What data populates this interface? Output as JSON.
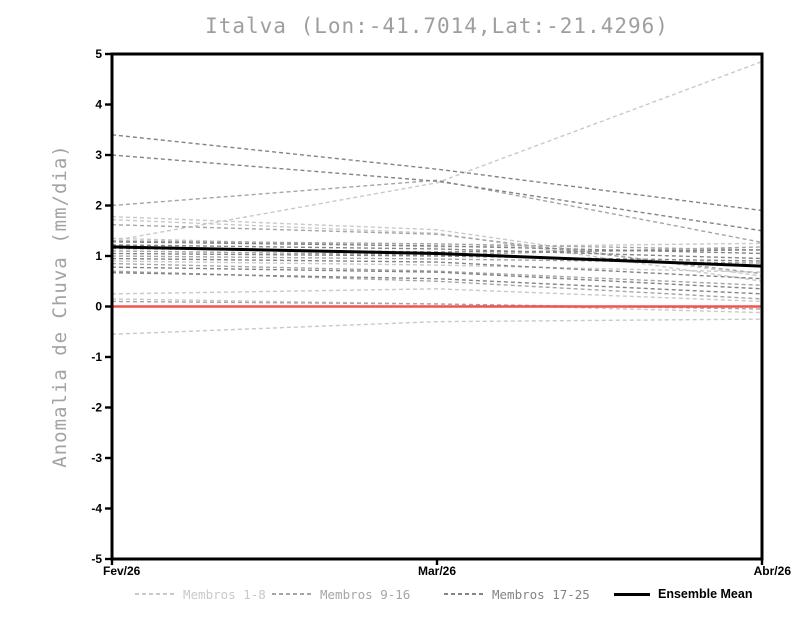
{
  "title": "Italva (Lon:-41.7014,Lat:-21.4296)",
  "chart_data": {
    "type": "line",
    "title": "Italva (Lon:-41.7014,Lat:-21.4296)",
    "xlabel": "",
    "ylabel": "Anomalia de Chuva (mm/dia)",
    "ylim": [
      -5,
      5
    ],
    "y_ticks": [
      5,
      4,
      3,
      2,
      1,
      0,
      -1,
      -2,
      -3,
      -4,
      -5
    ],
    "x_tick_labels": [
      "Fev/26",
      "Mar/26",
      "Abr/26"
    ],
    "grid": false,
    "legend_position": "bottom",
    "frame_color": "#000000",
    "tick_label_color": "#000000",
    "title_color": "#9e9e9e",
    "series": [
      {
        "name": "Membros 1-8",
        "color": "#c9c9c9",
        "style": "dashed",
        "width": 1.4,
        "members": [
          [
            1.3,
            2.45,
            4.85
          ],
          [
            1.78,
            1.52,
            0.6
          ],
          [
            1.72,
            1.45,
            0.5
          ],
          [
            1.35,
            1.18,
            1.25
          ],
          [
            0.9,
            0.82,
            0.68
          ],
          [
            0.25,
            0.35,
            0.1
          ],
          [
            0.15,
            0.05,
            -0.12
          ],
          [
            -0.55,
            -0.3,
            -0.25
          ]
        ]
      },
      {
        "name": "Membros 9-16",
        "color": "#a5a5a5",
        "style": "dashed",
        "width": 1.4,
        "members": [
          [
            2.0,
            2.5,
            1.27
          ],
          [
            1.62,
            1.43,
            0.65
          ],
          [
            1.3,
            1.24,
            1.12
          ],
          [
            1.1,
            1.02,
            1.18
          ],
          [
            1.0,
            0.94,
            0.86
          ],
          [
            0.85,
            0.7,
            0.42
          ],
          [
            0.7,
            0.5,
            0.15
          ],
          [
            0.1,
            0.05,
            -0.05
          ]
        ]
      },
      {
        "name": "Membros 17-25",
        "color": "#848484",
        "style": "dashed",
        "width": 1.4,
        "members": [
          [
            3.4,
            2.72,
            1.9
          ],
          [
            3.0,
            2.48,
            1.5
          ],
          [
            1.28,
            1.2,
            1.05
          ],
          [
            1.22,
            1.14,
            0.95
          ],
          [
            1.15,
            1.08,
            1.12
          ],
          [
            1.05,
            1.0,
            0.9
          ],
          [
            0.95,
            0.88,
            0.55
          ],
          [
            0.78,
            0.68,
            0.35
          ],
          [
            0.67,
            0.55,
            0.25
          ]
        ]
      },
      {
        "name": "Ensemble Mean",
        "color": "#000000",
        "style": "solid",
        "width": 3,
        "members": [
          [
            1.18,
            1.05,
            0.8
          ]
        ]
      }
    ],
    "zero_line": {
      "value": 0,
      "color": "#f0544c",
      "width": 2.4
    }
  }
}
